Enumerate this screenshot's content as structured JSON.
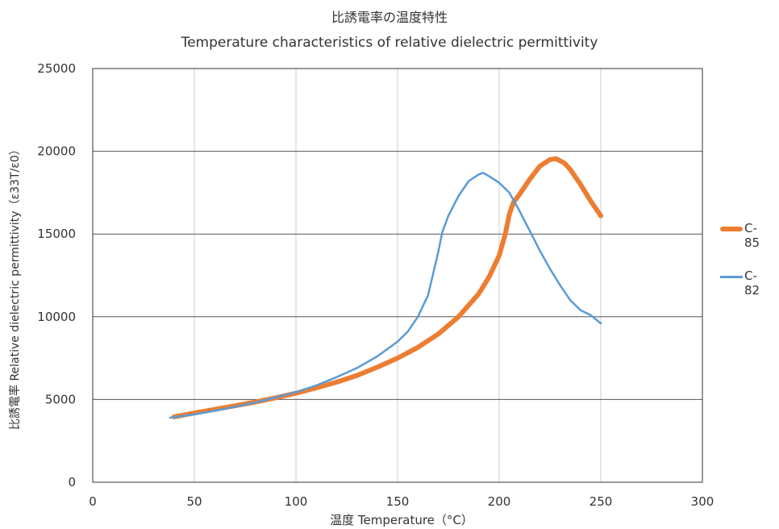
{
  "chart_data": {
    "type": "line",
    "title": "比誘電率の温度特性",
    "subtitle": "Temperature characteristics of relative dielectric permittivity",
    "xlabel": "温度 Temperature（°C）",
    "ylabel": "比誘電率 Relative dielectric permittivity（ε33T/ε0）",
    "xlim": [
      0,
      300
    ],
    "ylim": [
      0,
      25000
    ],
    "x_ticks": [
      0,
      50,
      100,
      150,
      200,
      250,
      300
    ],
    "y_ticks": [
      0,
      5000,
      10000,
      15000,
      20000,
      25000
    ],
    "grid": true,
    "legend_position": "right",
    "series": [
      {
        "name": "C-85",
        "color": "#ED7D31",
        "x": [
          40,
          50,
          60,
          70,
          80,
          90,
          100,
          110,
          120,
          130,
          140,
          150,
          160,
          170,
          180,
          190,
          195,
          200,
          203,
          205,
          207,
          210,
          215,
          220,
          225,
          228,
          232,
          235,
          240,
          245,
          250
        ],
        "y": [
          3950,
          4180,
          4400,
          4620,
          4850,
          5100,
          5380,
          5700,
          6050,
          6450,
          6950,
          7500,
          8150,
          8950,
          10000,
          11400,
          12400,
          13700,
          15000,
          16200,
          16900,
          17400,
          18300,
          19100,
          19500,
          19550,
          19300,
          18900,
          18000,
          17000,
          16100
        ]
      },
      {
        "name": "C-82",
        "color": "#5B9BD5",
        "x": [
          38,
          50,
          60,
          70,
          80,
          90,
          100,
          110,
          120,
          130,
          140,
          150,
          155,
          160,
          165,
          170,
          172,
          175,
          180,
          185,
          190,
          192,
          195,
          200,
          205,
          210,
          215,
          220,
          225,
          230,
          235,
          240,
          245,
          250
        ],
        "y": [
          3900,
          4100,
          4320,
          4560,
          4820,
          5120,
          5450,
          5850,
          6350,
          6900,
          7600,
          8500,
          9100,
          10000,
          11300,
          13900,
          15100,
          16100,
          17300,
          18200,
          18600,
          18700,
          18500,
          18100,
          17500,
          16400,
          15200,
          14000,
          12900,
          11900,
          11000,
          10400,
          10100,
          9600
        ]
      }
    ]
  }
}
